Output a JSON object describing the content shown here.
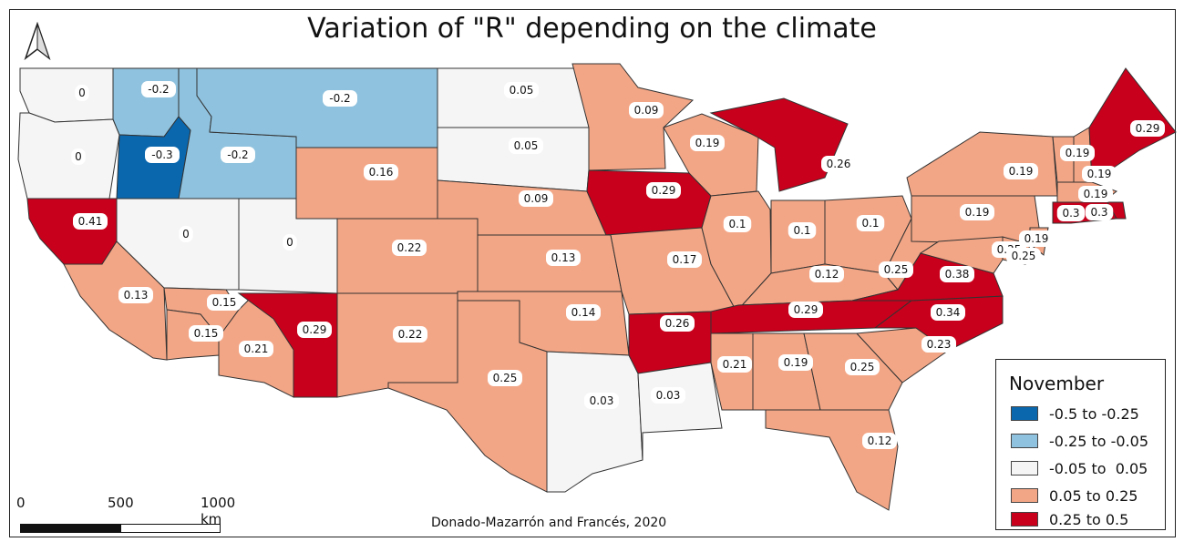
{
  "title": "Variation of \"R\" depending on the climate",
  "credit": "Donado-Mazarrón and Francés, 2020",
  "legend": {
    "title": "November",
    "classes": [
      {
        "label": "-0.5 to -0.25",
        "color": "#0a67ad"
      },
      {
        "label": "-0.25 to -0.05",
        "color": "#8fc2de"
      },
      {
        "label": "-0.05 to  0.05",
        "color": "#f5f5f5"
      },
      {
        "label": "0.05 to 0.25",
        "color": "#f3a686"
      },
      {
        "label": "0.25 to 0.5",
        "color": "#c9001b"
      }
    ]
  },
  "scale_bar": {
    "ticks": [
      "0",
      "500",
      "1000 km"
    ]
  },
  "north_arrow_icon": "north-arrow-icon",
  "states": [
    {
      "id": "WA",
      "value": "0",
      "cls": 2
    },
    {
      "id": "OR",
      "value": "0",
      "cls": 2
    },
    {
      "id": "CA",
      "value": "0.41",
      "cls": 4
    },
    {
      "id": "CA-S",
      "value": "0.13",
      "cls": 3
    },
    {
      "id": "ID-N",
      "value": "-0.2",
      "cls": 1
    },
    {
      "id": "ID-W",
      "value": "-0.3",
      "cls": 0
    },
    {
      "id": "ID",
      "value": "-0.2",
      "cls": 1
    },
    {
      "id": "MT",
      "value": "-0.2",
      "cls": 1
    },
    {
      "id": "NV",
      "value": "0",
      "cls": 2
    },
    {
      "id": "UT",
      "value": "0",
      "cls": 2
    },
    {
      "id": "AZ-W",
      "value": "0.15",
      "cls": 3
    },
    {
      "id": "AZ-N",
      "value": "0.15",
      "cls": 3
    },
    {
      "id": "AZ",
      "value": "0.21",
      "cls": 3
    },
    {
      "id": "AZ-E",
      "value": "0.29",
      "cls": 4
    },
    {
      "id": "WY",
      "value": "0.16",
      "cls": 3
    },
    {
      "id": "CO",
      "value": "0.22",
      "cls": 3
    },
    {
      "id": "NM",
      "value": "0.22",
      "cls": 3
    },
    {
      "id": "ND",
      "value": "0.05",
      "cls": 2
    },
    {
      "id": "SD",
      "value": "0.05",
      "cls": 2
    },
    {
      "id": "NE",
      "value": "0.09",
      "cls": 3
    },
    {
      "id": "KS",
      "value": "0.13",
      "cls": 3
    },
    {
      "id": "OK",
      "value": "0.14",
      "cls": 3
    },
    {
      "id": "TX-W",
      "value": "0.25",
      "cls": 3
    },
    {
      "id": "TX-E",
      "value": "0.03",
      "cls": 2
    },
    {
      "id": "MN",
      "value": "0.09",
      "cls": 3
    },
    {
      "id": "IA",
      "value": "0.29",
      "cls": 4
    },
    {
      "id": "MO",
      "value": "0.17",
      "cls": 3
    },
    {
      "id": "AR",
      "value": "0.26",
      "cls": 4
    },
    {
      "id": "LA",
      "value": "0.03",
      "cls": 2
    },
    {
      "id": "WI",
      "value": "0.19",
      "cls": 3
    },
    {
      "id": "IL",
      "value": "0.1",
      "cls": 3
    },
    {
      "id": "MI",
      "value": "0.26",
      "cls": 4
    },
    {
      "id": "IN",
      "value": "0.1",
      "cls": 3
    },
    {
      "id": "OH",
      "value": "0.1",
      "cls": 3
    },
    {
      "id": "KY",
      "value": "0.12",
      "cls": 3
    },
    {
      "id": "TN",
      "value": "0.29",
      "cls": 4
    },
    {
      "id": "MS",
      "value": "0.21",
      "cls": 3
    },
    {
      "id": "AL",
      "value": "0.19",
      "cls": 3
    },
    {
      "id": "GA",
      "value": "0.25",
      "cls": 3
    },
    {
      "id": "FL",
      "value": "0.12",
      "cls": 3
    },
    {
      "id": "SC",
      "value": "0.23",
      "cls": 3
    },
    {
      "id": "NC",
      "value": "0.34",
      "cls": 4
    },
    {
      "id": "VA",
      "value": "0.38",
      "cls": 4
    },
    {
      "id": "WV",
      "value": "0.25",
      "cls": 3
    },
    {
      "id": "PA",
      "value": "0.19",
      "cls": 3
    },
    {
      "id": "NY",
      "value": "0.19",
      "cls": 3
    },
    {
      "id": "VT",
      "value": "0.19",
      "cls": 3
    },
    {
      "id": "NH",
      "value": "0.19",
      "cls": 3
    },
    {
      "id": "ME",
      "value": "0.29",
      "cls": 4
    },
    {
      "id": "MA",
      "value": "0.19",
      "cls": 3
    },
    {
      "id": "CT",
      "value": "0.3",
      "cls": 4
    },
    {
      "id": "RI",
      "value": "0.3",
      "cls": 4
    },
    {
      "id": "NJ",
      "value": "0.19",
      "cls": 3
    },
    {
      "id": "DE",
      "value": "0.25",
      "cls": 3
    },
    {
      "id": "MD",
      "value": "0.25",
      "cls": 3
    }
  ]
}
